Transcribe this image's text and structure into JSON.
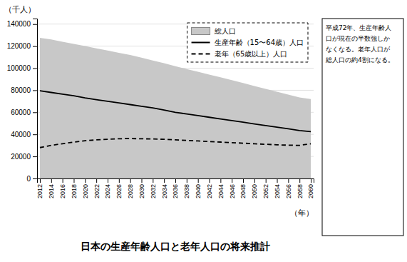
{
  "chart_data": {
    "type": "line",
    "title": "日本の生産年齢人口と老年人口の将来推計",
    "ylabel": "（千人）",
    "xlabel": "（年）",
    "annotation": [
      "平成72年、生産年齢人",
      "口が現在の半数強しか",
      "なくなる。老年人口が",
      "総人口の約4割になる。"
    ],
    "x": [
      2012,
      2014,
      2016,
      2018,
      2020,
      2022,
      2024,
      2026,
      2028,
      2030,
      2032,
      2034,
      2036,
      2038,
      2040,
      2042,
      2044,
      2046,
      2048,
      2050,
      2052,
      2054,
      2056,
      2058,
      2060
    ],
    "xlim": [
      2011.5,
      2060.5
    ],
    "xticks": [
      2012,
      2014,
      2016,
      2018,
      2020,
      2022,
      2024,
      2026,
      2028,
      2030,
      2032,
      2034,
      2036,
      2038,
      2040,
      2042,
      2044,
      2046,
      2048,
      2050,
      2052,
      2054,
      2056,
      2058,
      2060
    ],
    "ylim": [
      0,
      145000
    ],
    "yticks": [
      0,
      20000,
      40000,
      60000,
      80000,
      100000,
      120000,
      140000
    ],
    "grid": true,
    "legend": "upper right",
    "series": [
      {
        "name": "総人口",
        "type": "area",
        "color": "#c8c8c8",
        "values": [
          127500,
          126000,
          124000,
          122000,
          120000,
          118000,
          116000,
          114000,
          112000,
          109500,
          107000,
          104500,
          101800,
          99200,
          96700,
          94200,
          91700,
          89100,
          86500,
          83900,
          81300,
          78700,
          76100,
          73500,
          72000
        ]
      },
      {
        "name": "生産年齢（15〜64歳）人口",
        "type": "line",
        "color": "#000000",
        "line_style": "solid",
        "values": [
          79500,
          78000,
          76500,
          75000,
          73000,
          71500,
          70000,
          68500,
          67000,
          65500,
          64000,
          62000,
          60000,
          58500,
          57000,
          55500,
          54000,
          52500,
          51000,
          49500,
          48000,
          46500,
          45000,
          43500,
          42500
        ]
      },
      {
        "name": "老年（65歳以上）人口",
        "type": "line",
        "color": "#000000",
        "line_style": "dashed",
        "values": [
          28000,
          30000,
          31500,
          33000,
          34200,
          35000,
          35500,
          36000,
          36200,
          36000,
          35800,
          35500,
          35000,
          34500,
          34000,
          33500,
          33000,
          32500,
          32000,
          31500,
          31000,
          30500,
          30200,
          30000,
          31500
        ]
      }
    ]
  }
}
